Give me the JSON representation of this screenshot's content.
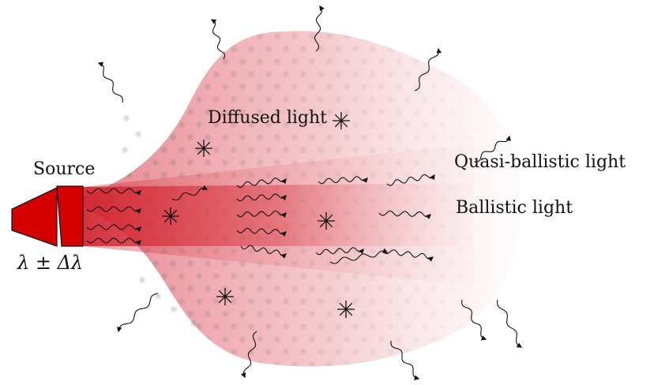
{
  "labels": {
    "source": "Source",
    "wavelength": "λ ± Δλ",
    "diffused": "Diffused light",
    "quasi_ballistic": "Quasi-ballistic light",
    "ballistic": "Ballistic light"
  },
  "colors": {
    "source_fill": "#d40000",
    "beam_red": "#d62828",
    "cloud_pink": "#e8707a",
    "dot_gray": "#7f7f7f",
    "ink": "#111111"
  },
  "icons": {
    "scatterer": "asterisk-icon",
    "photon": "wavy-arrow-icon"
  }
}
